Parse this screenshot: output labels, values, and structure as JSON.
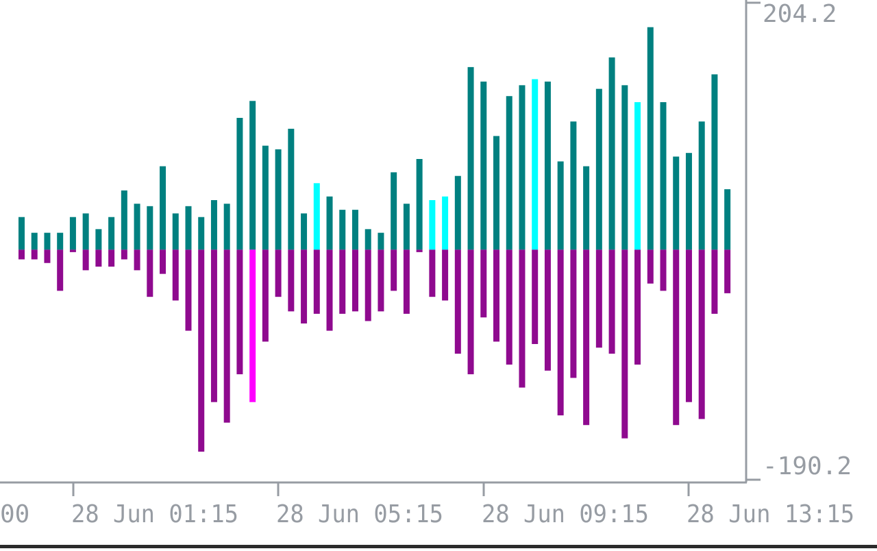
{
  "chart_data": {
    "type": "bar",
    "title": "",
    "xlabel": "",
    "ylabel": "",
    "ylim": [
      -190.2,
      204.2
    ],
    "y_axis_labels": [
      "204.2",
      "-190.2"
    ],
    "x_tick_labels": [
      "28 Jun 01:15",
      "28 Jun 05:15",
      "28 Jun 09:15",
      "28 Jun 13:15"
    ],
    "x_tick_cutoff_label": "00",
    "grid": false,
    "colors": {
      "positive": "#008080",
      "positive_highlight": "#00ffff",
      "negative": "#8f0a8f",
      "negative_highlight": "#ff00ff",
      "axis": "#979ca3"
    },
    "series": [
      {
        "values": [
          27,
          14,
          14,
          14,
          27,
          30,
          17,
          27,
          49,
          38,
          36,
          69,
          30,
          36,
          27,
          41,
          38,
          109,
          123,
          86,
          83,
          100,
          30,
          55,
          44,
          33,
          33,
          17,
          14,
          64,
          38,
          75,
          41,
          44,
          61,
          151,
          139,
          94,
          127,
          136,
          141,
          139,
          73,
          106,
          69,
          133,
          159,
          136,
          122,
          184,
          122,
          77,
          80,
          106,
          145,
          50
        ],
        "highlight_indices": [
          23,
          32,
          33,
          40,
          48
        ]
      },
      {
        "values": [
          -8,
          -8,
          -11,
          -34,
          -2,
          -17,
          -14,
          -14,
          -8,
          -17,
          -39,
          -20,
          -42,
          -67,
          -167,
          -126,
          -143,
          -103,
          -126,
          -76,
          -39,
          -51,
          -61,
          -53,
          -67,
          -53,
          -51,
          -59,
          -51,
          -34,
          -53,
          -2,
          -39,
          -42,
          -86,
          -103,
          -56,
          -76,
          -95,
          -114,
          -78,
          -100,
          -137,
          -106,
          -145,
          -81,
          -86,
          -156,
          -95,
          -28,
          -34,
          -145,
          -126,
          -140,
          -53,
          -36
        ],
        "highlight_indices": [
          18
        ]
      }
    ]
  }
}
